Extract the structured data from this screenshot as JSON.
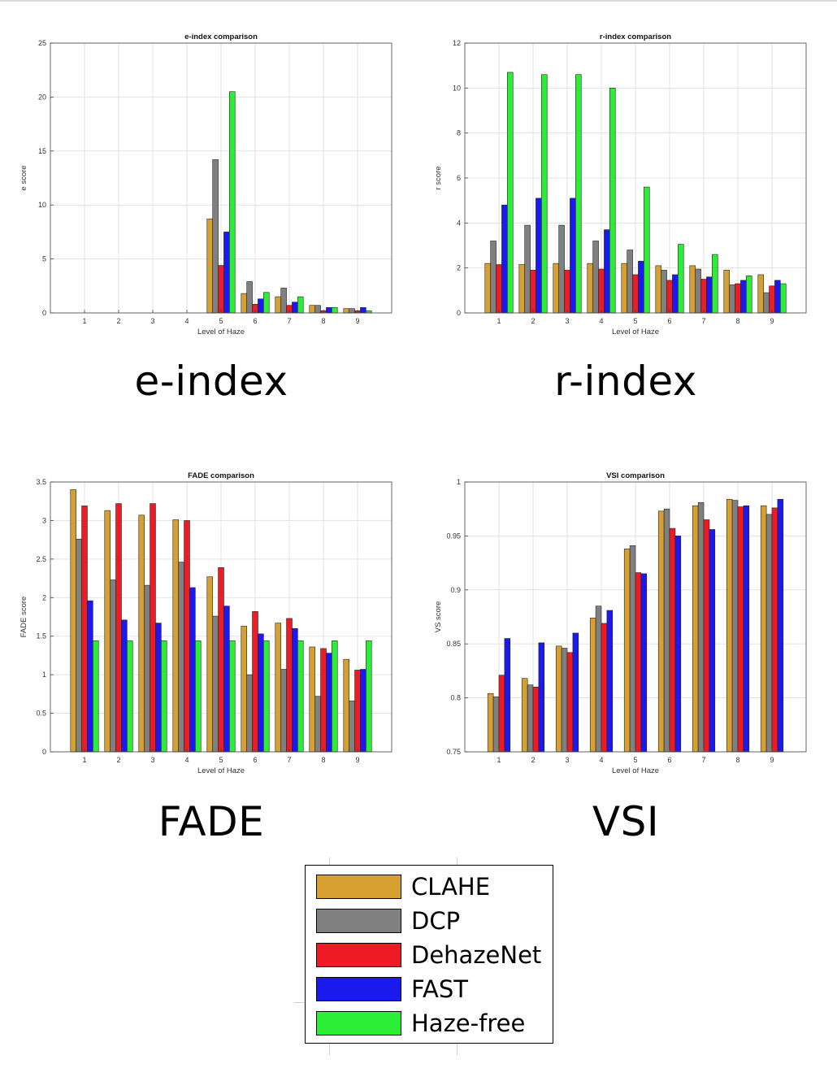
{
  "panel_titles": [
    "e-index",
    "r-index",
    "FADE",
    "VSI"
  ],
  "legend": [
    {
      "label": "CLAHE",
      "color": "#D6A032"
    },
    {
      "label": "DCP",
      "color": "#808080"
    },
    {
      "label": "DehazeNet",
      "color": "#EE1B24"
    },
    {
      "label": "FAST",
      "color": "#1A1AEE"
    },
    {
      "label": "Haze-free",
      "color": "#2BEE36"
    }
  ],
  "chart_data": [
    {
      "type": "bar",
      "title": "e-index comparison",
      "xlabel": "Level of Haze",
      "ylabel": "e score",
      "categories": [
        "1",
        "2",
        "3",
        "4",
        "5",
        "6",
        "7",
        "8",
        "9"
      ],
      "ylim": [
        0,
        25
      ],
      "yticks": [
        "0",
        "5",
        "10",
        "15",
        "20",
        "25"
      ],
      "grid": true,
      "series": [
        {
          "name": "CLAHE",
          "values": [
            0,
            0,
            0,
            0,
            8.7,
            1.8,
            1.5,
            0.7,
            0.4
          ]
        },
        {
          "name": "DCP",
          "values": [
            0,
            0,
            0,
            0,
            14.2,
            2.9,
            2.3,
            0.7,
            0.4
          ]
        },
        {
          "name": "DehazeNet",
          "values": [
            0,
            0,
            0,
            0,
            4.4,
            0.8,
            0.7,
            0.2,
            0.2
          ]
        },
        {
          "name": "FAST",
          "values": [
            0,
            0,
            0,
            0,
            7.5,
            1.3,
            1.0,
            0.5,
            0.5
          ]
        },
        {
          "name": "Haze-free",
          "values": [
            0,
            0,
            0,
            0,
            20.5,
            1.9,
            1.5,
            0.5,
            0.2
          ]
        }
      ]
    },
    {
      "type": "bar",
      "title": "r-index comparison",
      "xlabel": "Level of Haze",
      "ylabel": "r score",
      "categories": [
        "1",
        "2",
        "3",
        "4",
        "5",
        "6",
        "7",
        "8",
        "9"
      ],
      "ylim": [
        0,
        12
      ],
      "yticks": [
        "0",
        "2",
        "4",
        "6",
        "8",
        "10",
        "12"
      ],
      "grid": true,
      "series": [
        {
          "name": "CLAHE",
          "values": [
            2.2,
            2.15,
            2.2,
            2.2,
            2.2,
            2.1,
            2.1,
            1.9,
            1.7
          ]
        },
        {
          "name": "DCP",
          "values": [
            3.2,
            3.9,
            3.9,
            3.2,
            2.8,
            1.9,
            1.95,
            1.25,
            0.9
          ]
        },
        {
          "name": "DehazeNet",
          "values": [
            2.15,
            1.9,
            1.9,
            1.95,
            1.7,
            1.45,
            1.5,
            1.3,
            1.2
          ]
        },
        {
          "name": "FAST",
          "values": [
            4.8,
            5.1,
            5.1,
            3.7,
            2.3,
            1.7,
            1.6,
            1.45,
            1.45
          ]
        },
        {
          "name": "Haze-free",
          "values": [
            10.7,
            10.6,
            10.6,
            10.0,
            5.6,
            3.05,
            2.6,
            1.65,
            1.3
          ]
        }
      ]
    },
    {
      "type": "bar",
      "title": "FADE comparison",
      "xlabel": "Level of Haze",
      "ylabel": "FADE score",
      "categories": [
        "1",
        "2",
        "3",
        "4",
        "5",
        "6",
        "7",
        "8",
        "9"
      ],
      "ylim": [
        0,
        3.5
      ],
      "yticks": [
        "0",
        "0.5",
        "1",
        "1.5",
        "2",
        "2.5",
        "3",
        "3.5"
      ],
      "grid": true,
      "series": [
        {
          "name": "CLAHE",
          "values": [
            3.4,
            3.13,
            3.07,
            3.01,
            2.27,
            1.63,
            1.67,
            1.36,
            1.2
          ]
        },
        {
          "name": "DCP",
          "values": [
            2.76,
            2.23,
            2.16,
            2.46,
            1.76,
            1.0,
            1.07,
            0.72,
            0.66
          ]
        },
        {
          "name": "DehazeNet",
          "values": [
            3.19,
            3.22,
            3.22,
            3.0,
            2.39,
            1.82,
            1.73,
            1.34,
            1.06
          ]
        },
        {
          "name": "FAST",
          "values": [
            1.96,
            1.71,
            1.67,
            2.13,
            1.89,
            1.53,
            1.6,
            1.28,
            1.07
          ]
        },
        {
          "name": "Haze-free",
          "values": [
            1.44,
            1.44,
            1.44,
            1.44,
            1.44,
            1.44,
            1.44,
            1.44,
            1.44
          ]
        }
      ]
    },
    {
      "type": "bar",
      "title": "VSI comparison",
      "xlabel": "Level of Haze",
      "ylabel": "VS score",
      "categories": [
        "1",
        "2",
        "3",
        "4",
        "5",
        "6",
        "7",
        "8",
        "9"
      ],
      "ylim": [
        0.75,
        1
      ],
      "yticks": [
        "0.75",
        "0.8",
        "0.85",
        "0.9",
        "0.95",
        "1"
      ],
      "grid": true,
      "series": [
        {
          "name": "CLAHE",
          "values": [
            0.804,
            0.818,
            0.848,
            0.874,
            0.938,
            0.973,
            0.978,
            0.984,
            0.978
          ]
        },
        {
          "name": "DCP",
          "values": [
            0.801,
            0.812,
            0.846,
            0.885,
            0.941,
            0.975,
            0.981,
            0.983,
            0.97
          ]
        },
        {
          "name": "DehazeNet",
          "values": [
            0.821,
            0.81,
            0.842,
            0.869,
            0.916,
            0.957,
            0.965,
            0.977,
            0.976
          ]
        },
        {
          "name": "FAST",
          "values": [
            0.855,
            0.851,
            0.86,
            0.881,
            0.915,
            0.95,
            0.956,
            0.978,
            0.984
          ]
        }
      ]
    }
  ]
}
